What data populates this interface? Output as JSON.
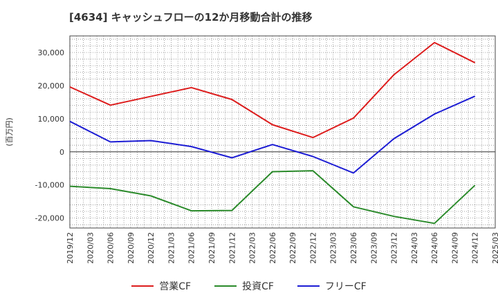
{
  "chart_data": {
    "type": "line",
    "title": "[4634]  キャッシュフローの12か月移動合計の推移",
    "ylabel": "(百万円)",
    "xlabel": "",
    "ylim": [
      -23000,
      35000
    ],
    "yticks": [
      -20000,
      -10000,
      0,
      10000,
      20000,
      30000
    ],
    "ytick_labels": [
      "-20,000",
      "-10,000",
      "0",
      "10,000",
      "20,000",
      "30,000"
    ],
    "x_range": [
      "2019-12",
      "2025-03"
    ],
    "xtick_labels": [
      "2019/12",
      "2020/03",
      "2020/06",
      "2020/09",
      "2020/12",
      "2021/03",
      "2021/06",
      "2021/09",
      "2021/12",
      "2022/03",
      "2022/06",
      "2022/09",
      "2022/12",
      "2023/03",
      "2023/06",
      "2023/09",
      "2023/12",
      "2024/03",
      "2024/06",
      "2024/09",
      "2024/12",
      "2025/03"
    ],
    "grid": true,
    "series": [
      {
        "name": "営業CF",
        "color": "#dd1c1c",
        "x": [
          "2019/12",
          "2020/06",
          "2021/06",
          "2021/12",
          "2022/06",
          "2022/12",
          "2023/06",
          "2023/12",
          "2024/06",
          "2024/12"
        ],
        "values": [
          19600,
          14100,
          19400,
          15800,
          8200,
          4300,
          10200,
          23300,
          33000,
          26900
        ]
      },
      {
        "name": "投資CF",
        "color": "#2a8a2a",
        "x": [
          "2019/12",
          "2020/06",
          "2020/12",
          "2021/06",
          "2021/12",
          "2022/06",
          "2022/12",
          "2023/06",
          "2023/12",
          "2024/06",
          "2024/12"
        ],
        "values": [
          -10400,
          -11100,
          -13300,
          -17800,
          -17700,
          -6000,
          -5700,
          -16600,
          -19500,
          -21600,
          -10100
        ]
      },
      {
        "name": "フリーCF",
        "color": "#1c1cd4",
        "x": [
          "2019/12",
          "2020/06",
          "2020/12",
          "2021/06",
          "2021/12",
          "2022/06",
          "2022/12",
          "2023/06",
          "2023/12",
          "2024/06",
          "2024/12"
        ],
        "values": [
          9200,
          3000,
          3400,
          1600,
          -1800,
          2200,
          -1400,
          -6400,
          4000,
          11400,
          16800
        ]
      }
    ]
  }
}
